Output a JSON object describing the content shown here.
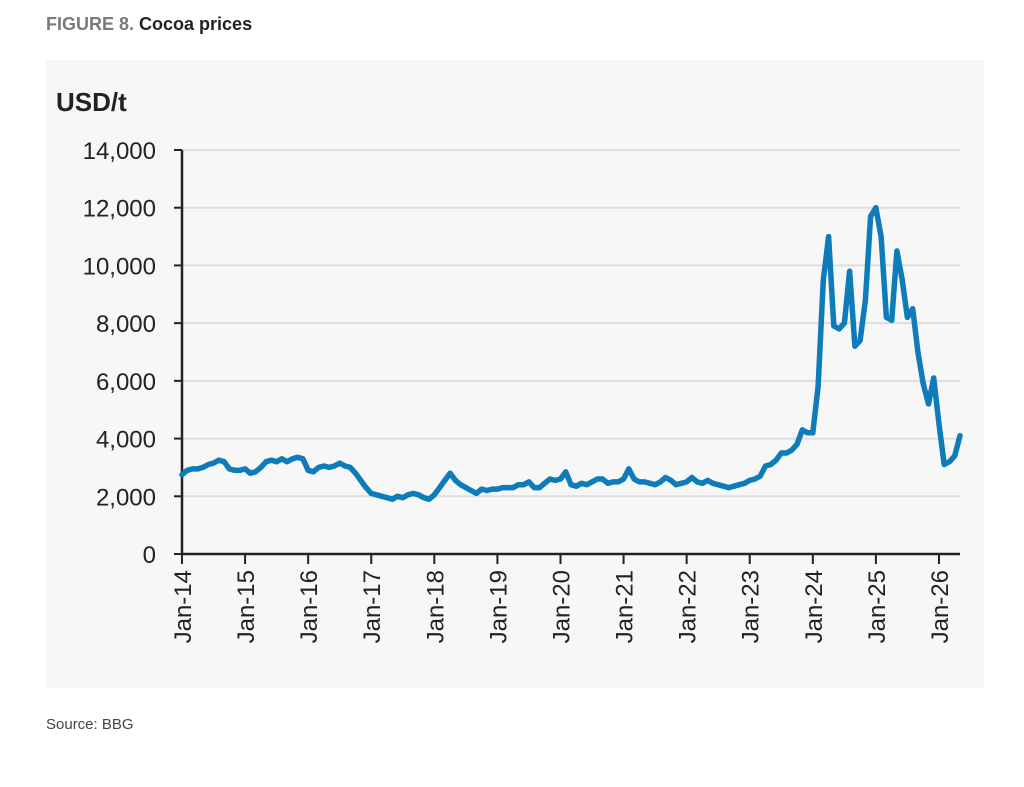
{
  "figure": {
    "number": "FIGURE 8.",
    "title": "Cocoa prices"
  },
  "source": "Source: BBG",
  "chart_data": {
    "type": "line",
    "title": "Cocoa prices",
    "ylabel": "USD/t",
    "xlabel": "",
    "ylim": [
      0,
      14000
    ],
    "yticks": [
      0,
      2000,
      4000,
      6000,
      8000,
      10000,
      12000,
      14000
    ],
    "ytick_labels": [
      "0",
      "2,000",
      "4,000",
      "6,000",
      "8,000",
      "10,000",
      "12,000",
      "14,000"
    ],
    "xlim": [
      "2014-01",
      "2026-05"
    ],
    "xticks": [
      "Jan-14",
      "Jan-15",
      "Jan-16",
      "Jan-17",
      "Jan-18",
      "Jan-19",
      "Jan-20",
      "Jan-21",
      "Jan-22",
      "Jan-23",
      "Jan-24",
      "Jan-25",
      "Jan-26"
    ],
    "grid": "horizontal",
    "legend": "none",
    "line_color": "#0e7cb8",
    "series": [
      {
        "x": [
          "2014-01",
          "2014-02",
          "2014-03",
          "2014-04",
          "2014-05",
          "2014-06",
          "2014-07",
          "2014-08",
          "2014-09",
          "2014-10",
          "2014-11",
          "2014-12",
          "2015-01",
          "2015-02",
          "2015-03",
          "2015-04",
          "2015-05",
          "2015-06",
          "2015-07",
          "2015-08",
          "2015-09",
          "2015-10",
          "2015-11",
          "2015-12",
          "2016-01",
          "2016-02",
          "2016-03",
          "2016-04",
          "2016-05",
          "2016-06",
          "2016-07",
          "2016-08",
          "2016-09",
          "2016-10",
          "2016-11",
          "2016-12",
          "2017-01",
          "2017-02",
          "2017-03",
          "2017-04",
          "2017-05",
          "2017-06",
          "2017-07",
          "2017-08",
          "2017-09",
          "2017-10",
          "2017-11",
          "2017-12",
          "2018-01",
          "2018-02",
          "2018-03",
          "2018-04",
          "2018-05",
          "2018-06",
          "2018-07",
          "2018-08",
          "2018-09",
          "2018-10",
          "2018-11",
          "2018-12",
          "2019-01",
          "2019-02",
          "2019-03",
          "2019-04",
          "2019-05",
          "2019-06",
          "2019-07",
          "2019-08",
          "2019-09",
          "2019-10",
          "2019-11",
          "2019-12",
          "2020-01",
          "2020-02",
          "2020-03",
          "2020-04",
          "2020-05",
          "2020-06",
          "2020-07",
          "2020-08",
          "2020-09",
          "2020-10",
          "2020-11",
          "2020-12",
          "2021-01",
          "2021-02",
          "2021-03",
          "2021-04",
          "2021-05",
          "2021-06",
          "2021-07",
          "2021-08",
          "2021-09",
          "2021-10",
          "2021-11",
          "2021-12",
          "2022-01",
          "2022-02",
          "2022-03",
          "2022-04",
          "2022-05",
          "2022-06",
          "2022-07",
          "2022-08",
          "2022-09",
          "2022-10",
          "2022-11",
          "2022-12",
          "2023-01",
          "2023-02",
          "2023-03",
          "2023-04",
          "2023-05",
          "2023-06",
          "2023-07",
          "2023-08",
          "2023-09",
          "2023-10",
          "2023-11",
          "2023-12",
          "2024-01",
          "2024-02",
          "2024-03",
          "2024-04",
          "2024-05",
          "2024-06",
          "2024-07",
          "2024-08",
          "2024-09",
          "2024-10",
          "2024-11",
          "2024-12",
          "2025-01",
          "2025-02",
          "2025-03",
          "2025-04",
          "2025-05",
          "2025-06",
          "2025-07",
          "2025-08",
          "2025-09",
          "2025-10",
          "2025-11",
          "2025-12",
          "2026-01",
          "2026-02",
          "2026-03",
          "2026-04",
          "2026-05"
        ],
        "y": [
          2750,
          2900,
          2950,
          2950,
          3000,
          3100,
          3150,
          3250,
          3200,
          2950,
          2900,
          2900,
          2950,
          2800,
          2850,
          3000,
          3200,
          3250,
          3200,
          3300,
          3200,
          3300,
          3350,
          3300,
          2900,
          2850,
          3000,
          3050,
          3000,
          3050,
          3150,
          3050,
          3000,
          2800,
          2550,
          2300,
          2100,
          2050,
          2000,
          1950,
          1900,
          2000,
          1950,
          2050,
          2100,
          2050,
          1950,
          1900,
          2050,
          2300,
          2550,
          2800,
          2550,
          2400,
          2300,
          2200,
          2100,
          2250,
          2200,
          2250,
          2250,
          2300,
          2300,
          2300,
          2400,
          2400,
          2500,
          2300,
          2300,
          2450,
          2600,
          2550,
          2600,
          2850,
          2400,
          2350,
          2450,
          2400,
          2500,
          2600,
          2600,
          2450,
          2500,
          2500,
          2600,
          2950,
          2600,
          2500,
          2500,
          2450,
          2400,
          2500,
          2650,
          2550,
          2400,
          2450,
          2500,
          2650,
          2500,
          2450,
          2550,
          2450,
          2400,
          2350,
          2300,
          2350,
          2400,
          2450,
          2550,
          2600,
          2700,
          3050,
          3100,
          3250,
          3500,
          3500,
          3600,
          3800,
          4300,
          4200,
          4200,
          5800,
          9500,
          11000,
          7900,
          7800,
          8000,
          9800,
          7200,
          7400,
          8800,
          11700,
          12000,
          11000,
          8200,
          8100,
          10500,
          9500,
          8200,
          8500,
          7000,
          5900,
          5200,
          6100,
          4500,
          3100,
          3200,
          3400,
          4100
        ]
      }
    ]
  }
}
